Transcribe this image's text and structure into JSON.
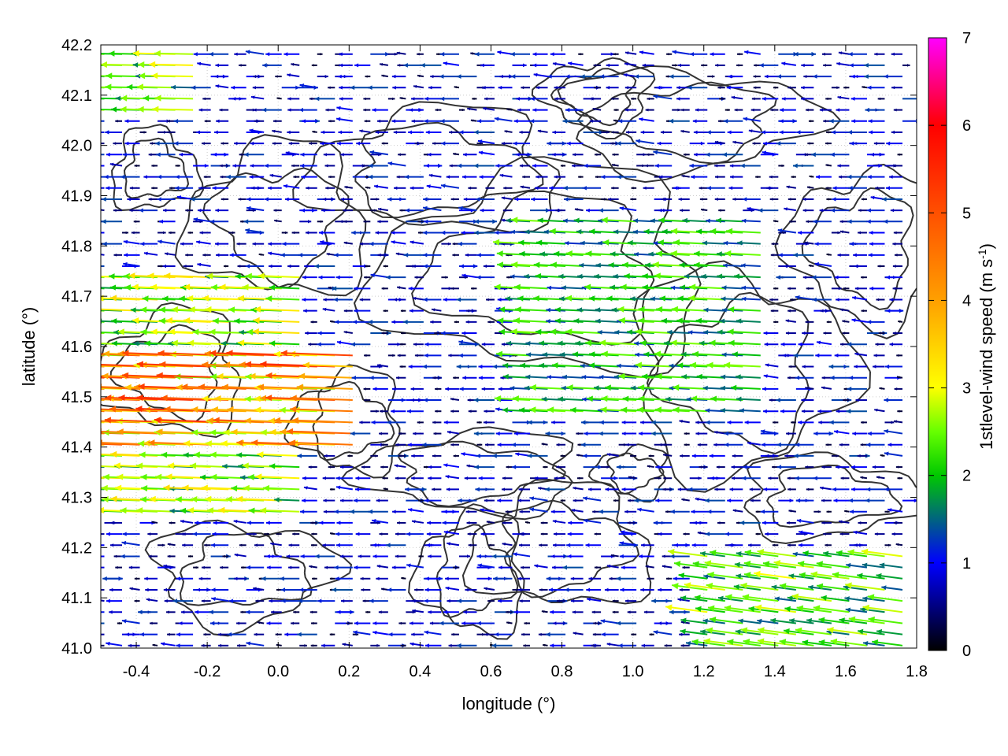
{
  "chart_data": {
    "type": "vector-field",
    "xlabel": "longitude (°)",
    "ylabel": "latitude (°)",
    "colorbar_label": "1stlevel-wind speed (m s",
    "colorbar_label_sup": "-1",
    "colorbar_label_end": ")",
    "xlim": [
      -0.5,
      1.8
    ],
    "ylim": [
      41.0,
      42.2
    ],
    "x_ticks": [
      -0.4,
      -0.2,
      0.0,
      0.2,
      0.4,
      0.6,
      0.8,
      1.0,
      1.2,
      1.4,
      1.6,
      1.8
    ],
    "x_tick_labels": [
      "-0.4",
      "-0.2",
      "0.0",
      "0.2",
      "0.4",
      "0.6",
      "0.8",
      "1.0",
      "1.2",
      "1.4",
      "1.6",
      "1.8"
    ],
    "y_ticks": [
      41.0,
      41.1,
      41.2,
      41.3,
      41.4,
      41.5,
      41.6,
      41.7,
      41.8,
      41.9,
      42.0,
      42.1,
      42.2
    ],
    "y_tick_labels": [
      "41.0",
      "41.1",
      "41.2",
      "41.3",
      "41.4",
      "41.5",
      "41.6",
      "41.7",
      "41.8",
      "41.9",
      "42.0",
      "42.1",
      "42.2"
    ],
    "colorbar_range": [
      0,
      7
    ],
    "colorbar_ticks": [
      0,
      1,
      2,
      3,
      4,
      5,
      6,
      7
    ],
    "colorbar_tick_labels": [
      "0",
      "1",
      "2",
      "3",
      "4",
      "5",
      "6",
      "7"
    ],
    "colormap": [
      "#000000",
      "#0000ff",
      "#00ff00",
      "#ffff00",
      "#ffa500",
      "#ff0000",
      "#ff00ff"
    ],
    "grid": true,
    "grid_color": "#cccccc",
    "contour_color": "#333333",
    "wind_field": {
      "lon_step": 0.05,
      "lat_step": 0.0222,
      "regions": [
        {
          "name": "strong-westward-west",
          "lon": [
            -0.5,
            0.25
          ],
          "lat": [
            41.4,
            41.6
          ],
          "u": -4.2,
          "v": 0.15
        },
        {
          "name": "moderate-westward-west",
          "lon": [
            -0.5,
            0.1
          ],
          "lat": [
            41.25,
            41.75
          ],
          "u": -2.6,
          "v": 0.1
        },
        {
          "name": "sea-southeast",
          "lon": [
            1.2,
            1.8
          ],
          "lat": [
            41.0,
            41.2
          ],
          "u": -2.3,
          "v": 0.3
        },
        {
          "name": "central-breeze",
          "lon": [
            0.7,
            1.4
          ],
          "lat": [
            41.45,
            41.85
          ],
          "u": -2.0,
          "v": 0.1
        },
        {
          "name": "north-coast",
          "lon": [
            -0.5,
            -0.2
          ],
          "lat": [
            42.05,
            42.2
          ],
          "u": -2.4,
          "v": 0.05
        }
      ],
      "background_speed": 0.6
    }
  }
}
